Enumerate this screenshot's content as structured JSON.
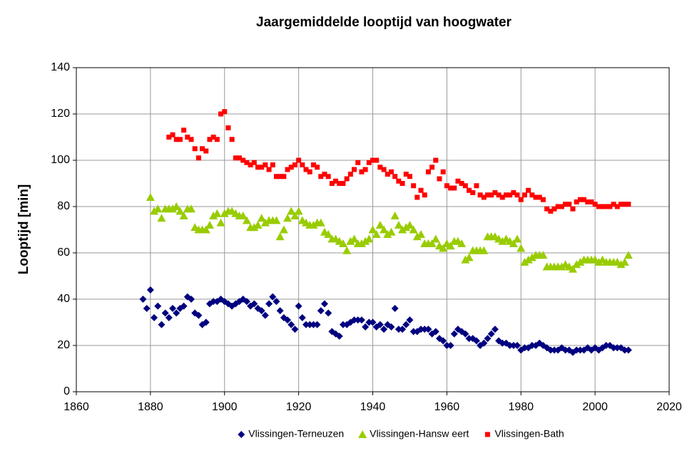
{
  "chart_data": {
    "type": "scatter",
    "title": "Jaargemiddelde looptijd van hoogwater",
    "y_label": "Looptijd [min]",
    "xlim": [
      1860,
      2020
    ],
    "xticks": [
      1860,
      1880,
      1900,
      1920,
      1940,
      1960,
      1980,
      2000,
      2020
    ],
    "ylim": [
      0,
      140
    ],
    "yticks": [
      0,
      20,
      40,
      60,
      80,
      100,
      120,
      140
    ],
    "grid": true,
    "legend": "bottom",
    "x": [
      1878,
      1879,
      1880,
      1881,
      1882,
      1883,
      1884,
      1885,
      1886,
      1887,
      1888,
      1889,
      1890,
      1891,
      1892,
      1893,
      1894,
      1895,
      1896,
      1897,
      1898,
      1899,
      1900,
      1901,
      1902,
      1903,
      1904,
      1905,
      1906,
      1907,
      1908,
      1909,
      1910,
      1911,
      1912,
      1913,
      1914,
      1915,
      1916,
      1917,
      1918,
      1919,
      1920,
      1921,
      1922,
      1923,
      1924,
      1925,
      1926,
      1927,
      1928,
      1929,
      1930,
      1931,
      1932,
      1933,
      1934,
      1935,
      1936,
      1937,
      1938,
      1939,
      1940,
      1941,
      1942,
      1943,
      1944,
      1945,
      1946,
      1947,
      1948,
      1949,
      1950,
      1951,
      1952,
      1953,
      1954,
      1955,
      1956,
      1957,
      1958,
      1959,
      1960,
      1961,
      1962,
      1963,
      1964,
      1965,
      1966,
      1967,
      1968,
      1969,
      1970,
      1971,
      1972,
      1973,
      1974,
      1975,
      1976,
      1977,
      1978,
      1979,
      1980,
      1981,
      1982,
      1983,
      1984,
      1985,
      1986,
      1987,
      1988,
      1989,
      1990,
      1991,
      1992,
      1993,
      1994,
      1995,
      1996,
      1997,
      1998,
      1999,
      2000,
      2001,
      2002,
      2003,
      2004,
      2005,
      2006,
      2007,
      2008,
      2009
    ],
    "series": [
      {
        "name": "Vlissingen-Terneuzen",
        "color": "#000080",
        "marker": "diamond",
        "values": [
          40,
          36,
          44,
          32,
          37,
          29,
          34,
          32,
          36,
          34,
          36,
          37,
          41,
          40,
          34,
          33,
          29,
          30,
          38,
          39,
          39,
          40,
          39,
          38,
          37,
          38,
          39,
          40,
          39,
          37,
          38,
          36,
          35,
          33,
          38,
          41,
          39,
          35,
          32,
          31,
          29,
          27,
          37,
          32,
          29,
          29,
          29,
          29,
          35,
          38,
          34,
          26,
          25,
          24,
          29,
          29,
          30,
          31,
          31,
          31,
          28,
          30,
          30,
          28,
          29,
          27,
          29,
          28,
          36,
          27,
          27,
          29,
          31,
          26,
          26,
          27,
          27,
          27,
          25,
          26,
          23,
          22,
          20,
          20,
          25,
          27,
          26,
          25,
          23,
          23,
          22,
          20,
          21,
          23,
          25,
          27,
          22,
          21,
          21,
          20,
          20,
          20,
          18,
          19,
          19,
          20,
          20,
          21,
          20,
          19,
          18,
          18,
          18,
          19,
          18,
          18,
          17,
          18,
          18,
          18,
          19,
          18,
          19,
          18,
          19,
          20,
          20,
          19,
          19,
          19,
          18,
          18
        ]
      },
      {
        "name": "Vlissingen-Hansw eert",
        "color": "#99cc00",
        "marker": "triangle",
        "values": [
          null,
          null,
          84,
          78,
          79,
          75,
          79,
          79,
          79,
          80,
          78,
          76,
          79,
          79,
          71,
          70,
          70,
          70,
          72,
          76,
          77,
          73,
          77,
          78,
          78,
          77,
          76,
          76,
          74,
          71,
          71,
          72,
          75,
          73,
          74,
          74,
          74,
          67,
          70,
          75,
          78,
          76,
          78,
          74,
          73,
          72,
          72,
          73,
          73,
          69,
          68,
          66,
          66,
          65,
          64,
          61,
          65,
          66,
          64,
          64,
          65,
          66,
          70,
          68,
          72,
          70,
          68,
          69,
          76,
          72,
          70,
          71,
          72,
          70,
          67,
          68,
          64,
          64,
          64,
          66,
          63,
          62,
          64,
          63,
          65,
          65,
          64,
          57,
          58,
          61,
          61,
          61,
          61,
          67,
          67,
          67,
          66,
          65,
          66,
          65,
          64,
          66,
          62,
          56,
          57,
          58,
          59,
          59,
          59,
          54,
          54,
          54,
          54,
          54,
          55,
          54,
          53,
          55,
          56,
          57,
          57,
          57,
          57,
          56,
          57,
          56,
          56,
          56,
          56,
          55,
          56,
          59
        ]
      },
      {
        "name": "Vlissingen-Bath",
        "color": "#ff0000",
        "marker": "square",
        "values": [
          null,
          null,
          null,
          null,
          null,
          null,
          null,
          110,
          111,
          109,
          109,
          113,
          110,
          109,
          105,
          101,
          105,
          104,
          109,
          110,
          109,
          120,
          121,
          114,
          109,
          101,
          101,
          100,
          99,
          98,
          99,
          97,
          97,
          98,
          96,
          98,
          93,
          93,
          93,
          96,
          97,
          98,
          100,
          98,
          96,
          95,
          98,
          97,
          93,
          94,
          93,
          90,
          91,
          90,
          90,
          92,
          94,
          96,
          99,
          95,
          96,
          99,
          100,
          100,
          97,
          96,
          94,
          95,
          93,
          91,
          90,
          94,
          93,
          89,
          84,
          87,
          85,
          95,
          97,
          100,
          92,
          95,
          89,
          88,
          88,
          91,
          90,
          89,
          87,
          86,
          89,
          85,
          84,
          85,
          85,
          86,
          85,
          84,
          85,
          85,
          86,
          85,
          83,
          85,
          87,
          85,
          84,
          84,
          83,
          79,
          78,
          79,
          80,
          80,
          81,
          81,
          79,
          82,
          83,
          83,
          82,
          82,
          81,
          80,
          80,
          80,
          80,
          81,
          80,
          81,
          81,
          81
        ]
      }
    ]
  }
}
